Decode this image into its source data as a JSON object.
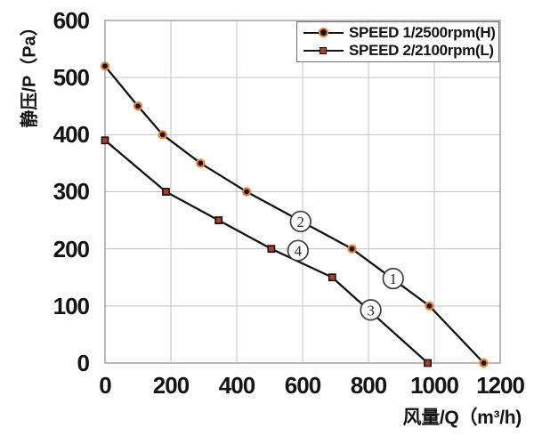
{
  "chart_data": {
    "type": "line",
    "title": "",
    "xlabel": "风量/Q（m³/h)",
    "ylabel": "静压/P（Pa）",
    "xlim": [
      0,
      1200
    ],
    "ylim": [
      0,
      600
    ],
    "grid": true,
    "legend_position": "top-right-inside",
    "xticks": [
      0,
      200,
      400,
      600,
      800,
      1000,
      1200
    ],
    "yticks": [
      0,
      100,
      200,
      300,
      400,
      500,
      600
    ],
    "xtick_labels": [
      "0",
      "200",
      "400",
      "600",
      "800",
      "1000",
      "1200"
    ],
    "ytick_labels_top_to_bottom": [
      "600",
      "500",
      "400",
      "300",
      "200",
      "100",
      "0"
    ],
    "series": [
      {
        "name": "SPEED 1/2500rpm(H)",
        "marker": "circle",
        "marker_fill": "#141414",
        "marker_edge": "#ED7D31",
        "line_color": "#141414",
        "points": [
          [
            0,
            520
          ],
          [
            100,
            450
          ],
          [
            175,
            400
          ],
          [
            290,
            350
          ],
          [
            430,
            300
          ],
          [
            750,
            200
          ],
          [
            985,
            100
          ],
          [
            1150,
            0
          ]
        ]
      },
      {
        "name": "SPEED 2/2100rpm(L)",
        "marker": "square",
        "marker_fill": "#B03A2B",
        "marker_edge": "#141414",
        "line_color": "#141414",
        "points": [
          [
            0,
            390
          ],
          [
            185,
            300
          ],
          [
            345,
            250
          ],
          [
            505,
            200
          ],
          [
            690,
            150
          ],
          [
            980,
            0
          ]
        ]
      }
    ],
    "annotations": [
      {
        "text": "1",
        "circled": "①",
        "x": 875,
        "y": 148
      },
      {
        "text": "2",
        "circled": "②",
        "x": 594,
        "y": 248
      },
      {
        "text": "3",
        "circled": "③",
        "x": 807,
        "y": 93
      },
      {
        "text": "4",
        "circled": "④",
        "x": 586,
        "y": 197
      }
    ],
    "colors": {
      "grid": "#C3C3C3",
      "plot_border": "#9D9D9D",
      "line": "#141414",
      "marker_orange": "#ED7D31",
      "marker_dark_red": "#B03A2B",
      "annotation_ring": "#3F3F3F",
      "annotation_text": "#2B2B2B",
      "legend_border": "#6E6E6E"
    }
  }
}
